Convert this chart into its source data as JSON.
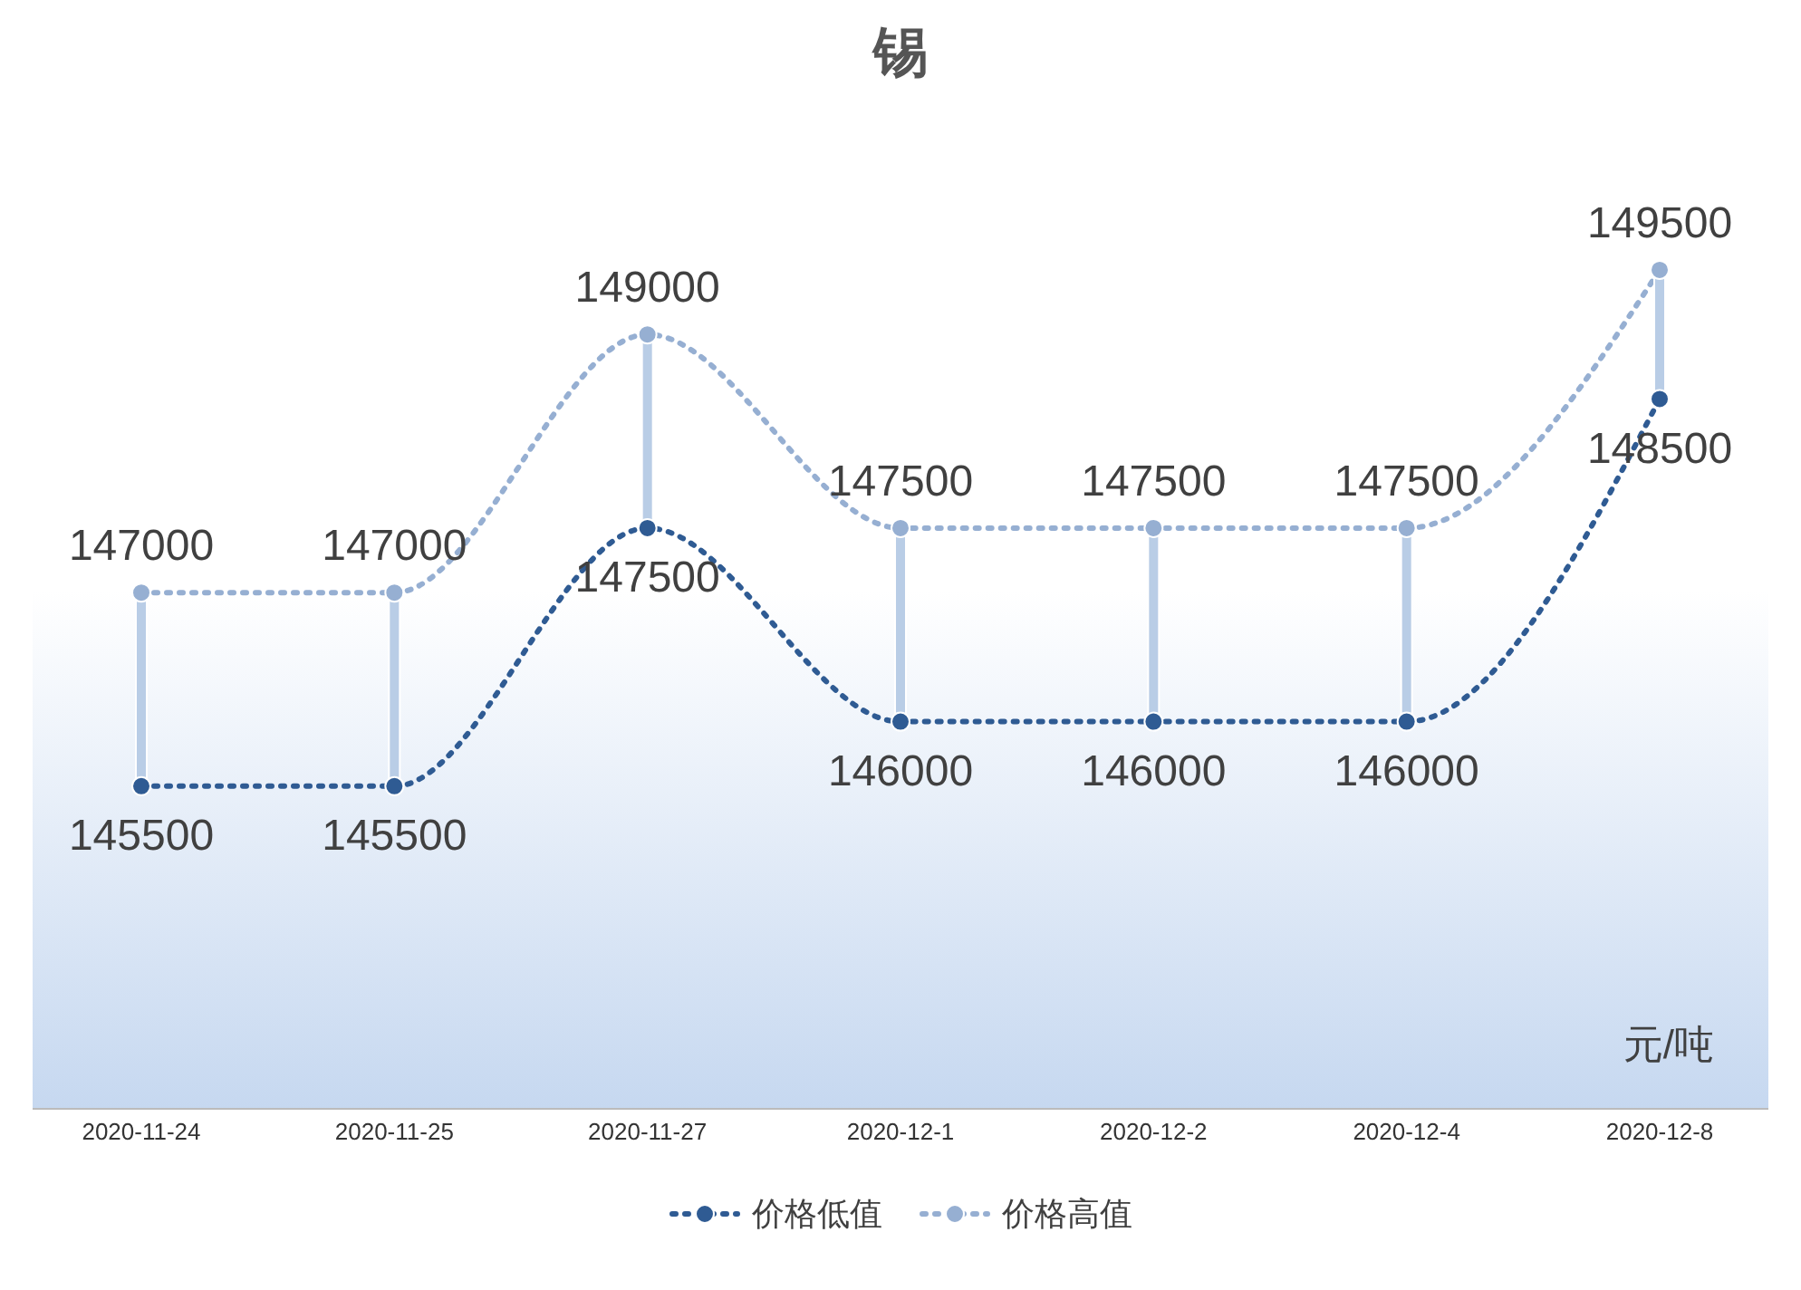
{
  "chart_data": {
    "type": "line",
    "title": "锡",
    "categories": [
      "2020-11-24",
      "2020-11-25",
      "2020-11-27",
      "2020-12-1",
      "2020-12-2",
      "2020-12-4",
      "2020-12-8"
    ],
    "series": [
      {
        "name": "价格低值",
        "color": "#2f5b93",
        "values": [
          145500,
          145500,
          147500,
          146000,
          146000,
          146000,
          148500
        ]
      },
      {
        "name": "价格高值",
        "color": "#96afd2",
        "values": [
          147000,
          147000,
          149000,
          147500,
          147500,
          147500,
          149500
        ]
      }
    ],
    "ylim": [
      143000,
      150300
    ],
    "data_labels": true,
    "legend": "bottom",
    "marker": "circle",
    "line_style": "dotted",
    "annotations": [
      "元/吨"
    ]
  }
}
